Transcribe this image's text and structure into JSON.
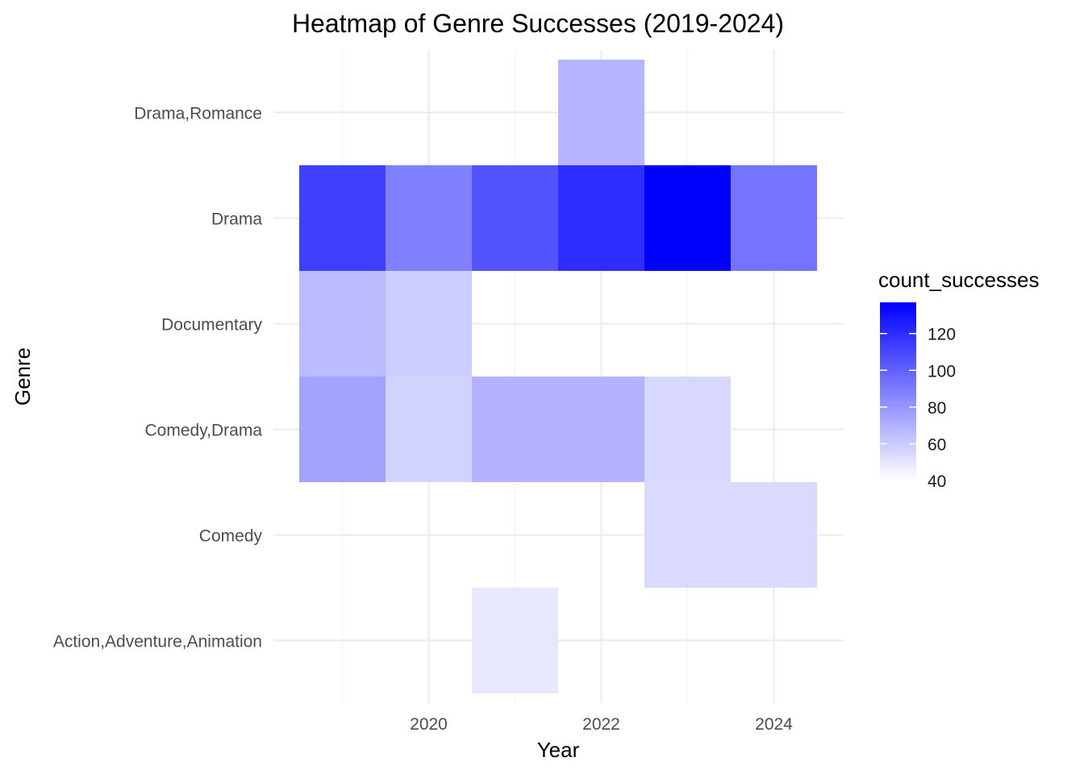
{
  "chart_data": {
    "type": "heatmap",
    "title": "Heatmap of Genre Successes (2019-2024)",
    "xlabel": "Year",
    "ylabel": "Genre",
    "x_categories": [
      2019,
      2020,
      2021,
      2022,
      2023,
      2024
    ],
    "x_tick_labels": [
      "2020",
      "2022",
      "2024"
    ],
    "x_tick_values": [
      2020,
      2022,
      2024
    ],
    "y_categories": [
      "Action,Adventure,Animation",
      "Comedy",
      "Comedy,Drama",
      "Documentary",
      "Drama",
      "Drama,Romance"
    ],
    "cells": [
      {
        "x": 2022,
        "y": "Drama,Romance",
        "value": 68
      },
      {
        "x": 2019,
        "y": "Drama",
        "value": 113
      },
      {
        "x": 2020,
        "y": "Drama",
        "value": 88
      },
      {
        "x": 2021,
        "y": "Drama",
        "value": 105
      },
      {
        "x": 2022,
        "y": "Drama",
        "value": 120
      },
      {
        "x": 2023,
        "y": "Drama",
        "value": 137
      },
      {
        "x": 2024,
        "y": "Drama",
        "value": 93
      },
      {
        "x": 2019,
        "y": "Documentary",
        "value": 66
      },
      {
        "x": 2020,
        "y": "Documentary",
        "value": 59
      },
      {
        "x": 2019,
        "y": "Comedy,Drama",
        "value": 75
      },
      {
        "x": 2020,
        "y": "Comedy,Drama",
        "value": 57
      },
      {
        "x": 2021,
        "y": "Comedy,Drama",
        "value": 69
      },
      {
        "x": 2022,
        "y": "Comedy,Drama",
        "value": 69
      },
      {
        "x": 2023,
        "y": "Comedy,Drama",
        "value": 55
      },
      {
        "x": 2023,
        "y": "Comedy",
        "value": 54
      },
      {
        "x": 2024,
        "y": "Comedy",
        "value": 54
      },
      {
        "x": 2021,
        "y": "Action,Adventure,Animation",
        "value": 49
      }
    ],
    "legend": {
      "title": "count_successes",
      "placement": "right",
      "min": 40,
      "max": 137,
      "ticks": [
        40,
        60,
        80,
        100,
        120
      ],
      "low_color": "#ffffff",
      "high_color": "#0000ff"
    },
    "grid": true
  }
}
